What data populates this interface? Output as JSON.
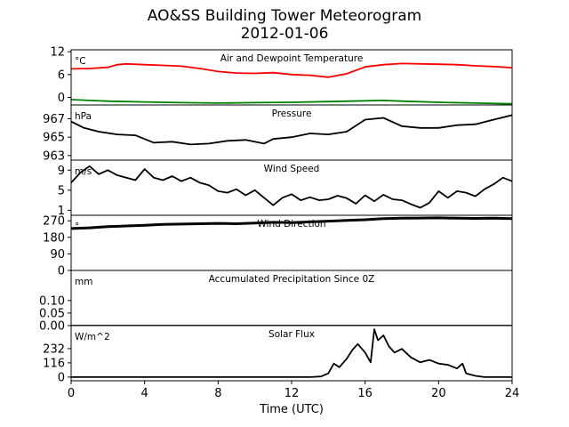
{
  "figure": {
    "title": "AO&SS Building Tower Meteorogram",
    "subtitle": "2012-01-06",
    "xlabel": "Time (UTC)"
  },
  "chart_data": [
    {
      "type": "line",
      "title": "Air and Dewpoint Temperature",
      "ylabel": "°C",
      "xlim": [
        0,
        24
      ],
      "ylim": [
        -2,
        12.5
      ],
      "yticks": [
        "0",
        "6",
        "12"
      ],
      "ytick_values": [
        0,
        6,
        12
      ],
      "series": [
        {
          "color": "#ff0000",
          "x": [
            0,
            1,
            2,
            2.5,
            3,
            4,
            5,
            6,
            7,
            8,
            9,
            10,
            11,
            12,
            13,
            14,
            15,
            16,
            17,
            18,
            19,
            20,
            21,
            22,
            23,
            24
          ],
          "values": [
            7.5,
            7.6,
            7.9,
            8.6,
            8.8,
            8.6,
            8.4,
            8.2,
            7.6,
            6.8,
            6.4,
            6.3,
            6.5,
            6.0,
            5.8,
            5.3,
            6.2,
            8.0,
            8.6,
            8.9,
            8.8,
            8.7,
            8.6,
            8.3,
            8.1,
            7.8
          ]
        },
        {
          "color": "#008000",
          "x": [
            0,
            1,
            2,
            4,
            6,
            8,
            10,
            12,
            14,
            16,
            17,
            18,
            20,
            22,
            24
          ],
          "values": [
            -0.6,
            -0.8,
            -1.0,
            -1.2,
            -1.4,
            -1.5,
            -1.4,
            -1.3,
            -1.1,
            -0.9,
            -0.8,
            -1.0,
            -1.3,
            -1.5,
            -1.7
          ]
        }
      ]
    },
    {
      "type": "line",
      "title": "Pressure",
      "ylabel": "hPa",
      "xlim": [
        0,
        24
      ],
      "ylim": [
        962.5,
        968.5
      ],
      "yticks": [
        "963",
        "965",
        "967"
      ],
      "ytick_values": [
        963,
        965,
        967
      ],
      "series": [
        {
          "color": "#000000",
          "x": [
            0,
            0.7,
            1.5,
            2.5,
            3.5,
            4.5,
            5.5,
            6.5,
            7.5,
            8.5,
            9.5,
            10.5,
            11,
            12,
            13,
            14,
            15,
            16,
            17,
            18,
            19,
            20,
            21,
            22,
            23,
            24
          ],
          "values": [
            966.7,
            966.0,
            965.6,
            965.3,
            965.2,
            964.4,
            964.5,
            964.2,
            964.3,
            964.6,
            964.7,
            964.3,
            964.8,
            965.0,
            965.4,
            965.3,
            965.6,
            966.9,
            967.1,
            966.2,
            966.0,
            966.0,
            966.3,
            966.4,
            966.9,
            967.4
          ]
        }
      ]
    },
    {
      "type": "line",
      "title": "Wind Speed",
      "ylabel": "m/s",
      "xlim": [
        0,
        24
      ],
      "ylim": [
        0,
        11
      ],
      "yticks": [
        "1",
        "5",
        "9"
      ],
      "ytick_values": [
        1,
        5,
        9
      ],
      "series": [
        {
          "color": "#000000",
          "x": [
            0,
            0.5,
            1,
            1.5,
            2,
            2.5,
            3,
            3.5,
            4,
            4.5,
            5,
            5.5,
            6,
            6.5,
            7,
            7.5,
            8,
            8.5,
            9,
            9.5,
            10,
            10.5,
            11,
            11.5,
            12,
            12.5,
            13,
            13.5,
            14,
            14.5,
            15,
            15.5,
            16,
            16.5,
            17,
            17.5,
            18,
            18.5,
            19,
            19.5,
            20,
            20.5,
            21,
            21.5,
            22,
            22.5,
            23,
            23.5,
            24
          ],
          "values": [
            6.5,
            8.5,
            9.8,
            8.2,
            9.0,
            8.0,
            7.5,
            7.0,
            9.2,
            7.5,
            7.0,
            7.8,
            6.8,
            7.5,
            6.5,
            6.0,
            4.8,
            4.5,
            5.2,
            4.0,
            5.0,
            3.5,
            2.0,
            3.5,
            4.2,
            3.0,
            3.6,
            3.0,
            3.2,
            3.9,
            3.4,
            2.3,
            4.0,
            2.8,
            4.1,
            3.2,
            3.0,
            2.2,
            1.5,
            2.5,
            4.8,
            3.5,
            4.8,
            4.5,
            3.8,
            5.2,
            6.2,
            7.5,
            6.8
          ]
        }
      ]
    },
    {
      "type": "line",
      "title": "Wind Direction",
      "ylabel": "°",
      "xlim": [
        0,
        24
      ],
      "ylim": [
        0,
        300
      ],
      "yticks": [
        "0",
        "90",
        "180",
        "270"
      ],
      "ytick_values": [
        0,
        90,
        180,
        270
      ],
      "series": [
        {
          "color": "#000000",
          "x": [
            0,
            1,
            2,
            3,
            4,
            5,
            6,
            7,
            8,
            9,
            10,
            11,
            12,
            13,
            14,
            15,
            16,
            17,
            18,
            19,
            20,
            21,
            22,
            23,
            24
          ],
          "values": [
            228,
            232,
            238,
            242,
            246,
            250,
            252,
            254,
            256,
            254,
            258,
            262,
            260,
            264,
            268,
            272,
            276,
            282,
            284,
            285,
            286,
            284,
            283,
            284,
            282
          ]
        }
      ]
    },
    {
      "type": "line",
      "title": "Accumulated Precipitation Since 0Z",
      "ylabel": "mm",
      "xlim": [
        0,
        24
      ],
      "ylim": [
        0,
        0.22
      ],
      "yticks": [
        "0.00",
        "0.05",
        "0.10"
      ],
      "ytick_values": [
        0,
        0.05,
        0.1
      ],
      "series": [
        {
          "color": "#000000",
          "x": [
            0,
            24
          ],
          "values": [
            0,
            0
          ]
        }
      ]
    },
    {
      "type": "line",
      "title": "Solar Flux",
      "ylabel": "W/m^2",
      "xlim": [
        0,
        24
      ],
      "ylim": [
        -30,
        420
      ],
      "yticks": [
        "0",
        "116",
        "232"
      ],
      "ytick_values": [
        0,
        116,
        232
      ],
      "series": [
        {
          "color": "#000000",
          "x": [
            0,
            13,
            13.6,
            14,
            14.3,
            14.6,
            15,
            15.3,
            15.6,
            16,
            16.3,
            16.5,
            16.7,
            17,
            17.3,
            17.6,
            18,
            18.5,
            19,
            19.5,
            20,
            20.5,
            21,
            21.3,
            21.5,
            22,
            22.5,
            24
          ],
          "values": [
            0,
            0,
            5,
            30,
            110,
            80,
            150,
            220,
            270,
            200,
            120,
            390,
            300,
            340,
            250,
            200,
            230,
            160,
            120,
            140,
            110,
            100,
            70,
            110,
            30,
            10,
            0,
            0
          ]
        }
      ]
    }
  ],
  "x_axis": {
    "ticks": [
      "0",
      "4",
      "8",
      "12",
      "16",
      "20",
      "24"
    ],
    "tick_values": [
      0,
      4,
      8,
      12,
      16,
      20,
      24
    ]
  }
}
